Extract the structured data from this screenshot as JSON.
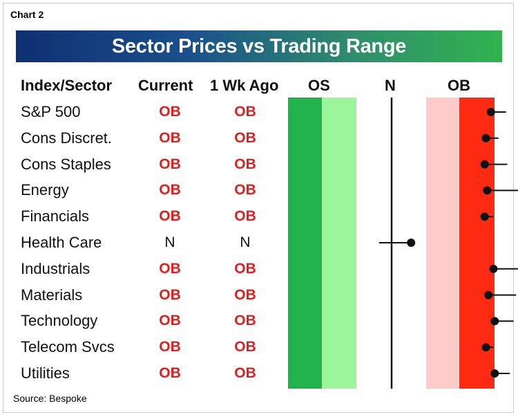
{
  "chart_label": "Chart 2",
  "title": "Sector Prices vs Trading Range",
  "source": "Source: Bespoke",
  "headers": {
    "index": "Index/Sector",
    "current": "Current",
    "week_ago": "1 Wk Ago",
    "os": "OS",
    "n": "N",
    "ob": "OB"
  },
  "chart_data": {
    "type": "scatter",
    "title": "Sector Prices vs Trading Range",
    "xlabel": "",
    "ylabel": "",
    "zones": [
      "OS",
      "N",
      "OB"
    ],
    "colors": {
      "os_dark": "#22b24c",
      "os_light": "#9cf59a",
      "ob_light": "#ffcaca",
      "ob_dark": "#ff2a12",
      "ob_text": "#e02020"
    },
    "rows": [
      {
        "sector": "S&P 500",
        "current": "OB",
        "week_ago": "OB",
        "position": 1.58,
        "tail": 1.82
      },
      {
        "sector": "Cons Discret.",
        "current": "OB",
        "week_ago": "OB",
        "position": 1.5,
        "tail": 1.7
      },
      {
        "sector": "Cons Staples",
        "current": "OB",
        "week_ago": "OB",
        "position": 1.48,
        "tail": 1.84
      },
      {
        "sector": "Energy",
        "current": "OB",
        "week_ago": "OB",
        "position": 1.52,
        "tail": 2.06
      },
      {
        "sector": "Financials",
        "current": "OB",
        "week_ago": "OB",
        "position": 1.48,
        "tail": 1.62
      },
      {
        "sector": "Health Care",
        "current": "N",
        "week_ago": "N",
        "position": 0.31,
        "tail": -0.2
      },
      {
        "sector": "Industrials",
        "current": "OB",
        "week_ago": "OB",
        "position": 1.62,
        "tail": 2.02
      },
      {
        "sector": "Materials",
        "current": "OB",
        "week_ago": "OB",
        "position": 1.54,
        "tail": 1.98
      },
      {
        "sector": "Technology",
        "current": "OB",
        "week_ago": "OB",
        "position": 1.64,
        "tail": 1.94
      },
      {
        "sector": "Telecom Svcs",
        "current": "OB",
        "week_ago": "OB",
        "position": 1.5,
        "tail": 1.62
      },
      {
        "sector": "Utilities",
        "current": "OB",
        "week_ago": "OB",
        "position": 1.64,
        "tail": 1.88
      }
    ]
  }
}
